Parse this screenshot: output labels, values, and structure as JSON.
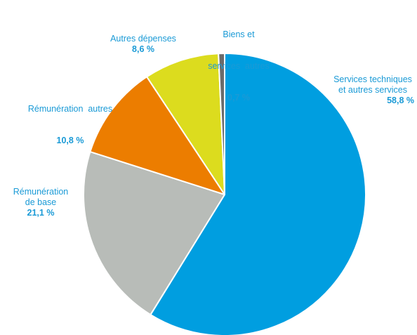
{
  "chart_data": {
    "type": "pie",
    "slices": [
      {
        "label": "Services techniques et autres services",
        "label_lines": [
          "Services techniques",
          "et autres services"
        ],
        "value_label": "58,8 %",
        "value": 58.8,
        "color": "#009ee0"
      },
      {
        "label": "Rémunération de base",
        "label_lines": [
          "Rémunération",
          "de base"
        ],
        "value_label": "21,1 %",
        "value": 21.1,
        "color": "#b8bcb8"
      },
      {
        "label": "Rémunération autres",
        "label_lines": [
          "Rémunération  autres"
        ],
        "value_label": "10,8 %",
        "value": 10.8,
        "color": "#ec7d00"
      },
      {
        "label": "Autres dépenses",
        "label_lines": [
          "Autres dépenses"
        ],
        "value_label": "8,6 %",
        "value": 8.6,
        "color": "#dcdc1e"
      },
      {
        "label": "Biens et services autres",
        "label_lines": [
          "Biens et",
          "services  autres"
        ],
        "value_label": "0,7 %",
        "value": 0.7,
        "color": "#6b6b6b"
      }
    ],
    "start": "12 o'clock",
    "direction": "clockwise"
  }
}
